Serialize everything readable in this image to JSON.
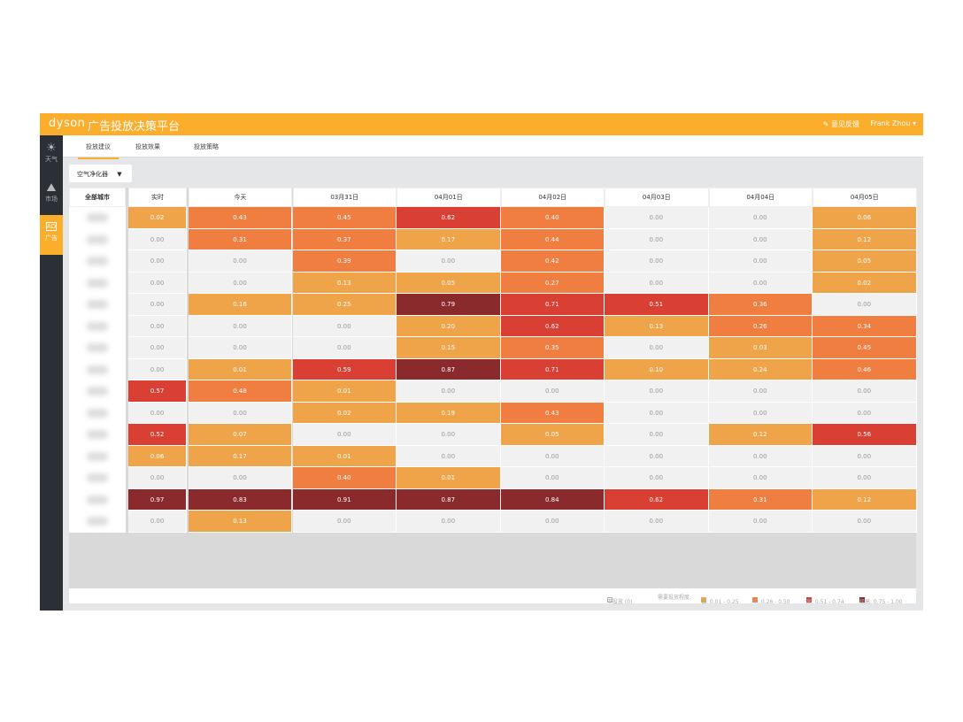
{
  "header": {
    "logo": "dyson",
    "title": "广告投放决策平台",
    "feedback": "意见反馈",
    "user": "Frank Zhou"
  },
  "sidebar": {
    "items": [
      {
        "label": "天气",
        "icon": "sun-icon"
      },
      {
        "label": "市场",
        "icon": "chart-icon"
      },
      {
        "label": "广告",
        "icon": "ad-board-icon"
      }
    ]
  },
  "tabs": [
    {
      "label": "投放建议"
    },
    {
      "label": "投放效果"
    },
    {
      "label": "投放策略"
    }
  ],
  "dropdown": {
    "value": "空气净化器"
  },
  "table": {
    "headers": [
      "全部城市",
      "实时",
      "今天",
      "03月31日",
      "04月01日",
      "04月02日",
      "04月03日",
      "04月04日",
      "04月05日"
    ],
    "rows": [
      [
        "0.02",
        "0.43",
        "0.45",
        "0.62",
        "0.40",
        "0.00",
        "0.00",
        "0.06"
      ],
      [
        "0.00",
        "0.31",
        "0.37",
        "0.17",
        "0.44",
        "0.00",
        "0.00",
        "0.12"
      ],
      [
        "0.00",
        "0.00",
        "0.39",
        "0.00",
        "0.42",
        "0.00",
        "0.00",
        "0.05"
      ],
      [
        "0.00",
        "0.00",
        "0.13",
        "0.05",
        "0.27",
        "0.00",
        "0.00",
        "0.02"
      ],
      [
        "0.00",
        "0.16",
        "0.25",
        "0.79",
        "0.71",
        "0.51",
        "0.36",
        "0.00"
      ],
      [
        "0.00",
        "0.00",
        "0.00",
        "0.20",
        "0.62",
        "0.13",
        "0.26",
        "0.34"
      ],
      [
        "0.00",
        "0.00",
        "0.00",
        "0.15",
        "0.35",
        "0.00",
        "0.03",
        "0.45"
      ],
      [
        "0.00",
        "0.01",
        "0.59",
        "0.87",
        "0.71",
        "0.10",
        "0.24",
        "0.46"
      ],
      [
        "0.57",
        "0.48",
        "0.01",
        "0.00",
        "0.00",
        "0.00",
        "0.00",
        "0.00"
      ],
      [
        "0.00",
        "0.00",
        "0.02",
        "0.19",
        "0.43",
        "0.00",
        "0.00",
        "0.00"
      ],
      [
        "0.52",
        "0.07",
        "0.00",
        "0.00",
        "0.05",
        "0.00",
        "0.12",
        "0.56"
      ],
      [
        "0.06",
        "0.17",
        "0.01",
        "0.00",
        "0.00",
        "0.00",
        "0.00",
        "0.00"
      ],
      [
        "0.00",
        "0.00",
        "0.40",
        "0.01",
        "0.00",
        "0.00",
        "0.00",
        "0.00"
      ],
      [
        "0.97",
        "0.83",
        "0.91",
        "0.87",
        "0.84",
        "0.62",
        "0.31",
        "0.12"
      ],
      [
        "0.00",
        "0.13",
        "0.00",
        "0.00",
        "0.00",
        "0.00",
        "0.00",
        "0.00"
      ]
    ]
  },
  "legend": {
    "none": "不投放 (0)",
    "title": "需要投放程度:",
    "low": "低: 0.01 - 0.25",
    "mid": "中: 0.26 - 0.50",
    "high": "高: 0.51 - 0.74",
    "very_high": "极高: 0.75 - 1.00"
  },
  "colors": {
    "zero": "#f1f1f1",
    "low": "#f0a44a",
    "mid": "#f07e40",
    "high": "#d93f33",
    "very_high": "#8b2a2d",
    "brand": "#fbae2b"
  }
}
